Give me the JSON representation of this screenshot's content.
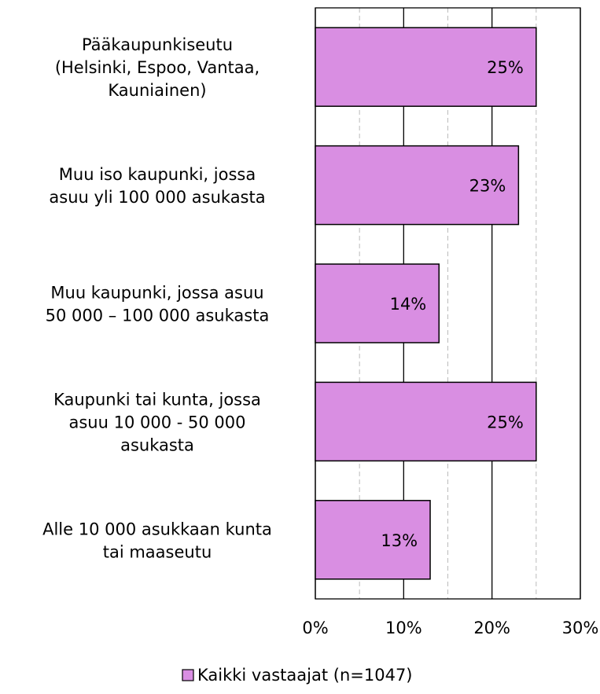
{
  "chart_data": {
    "type": "barh",
    "categories": [
      "Pääkaupunkiseutu\n(Helsinki, Espoo, Vantaa,\nKauniainen)",
      "Muu iso kaupunki, jossa\nasuu yli 100 000 asukasta",
      "Muu kaupunki, jossa asuu\n50 000 – 100 000 asukasta",
      "Kaupunki tai kunta, jossa\nasuu 10 000 - 50 000\nasukasta",
      "Alle 10 000 asukkaan kunta\ntai maaseutu"
    ],
    "series": [
      {
        "name": "Kaikki vastaajat (n=1047)",
        "color": "#d98ee2",
        "values": [
          25,
          23,
          14,
          25,
          13
        ],
        "value_labels": [
          "25%",
          "23%",
          "14%",
          "25%",
          "13%"
        ]
      }
    ],
    "xlim": [
      0,
      30
    ],
    "xticks": [
      {
        "value": 0,
        "label": "0%"
      },
      {
        "value": 10,
        "label": "10%"
      },
      {
        "value": 20,
        "label": "20%"
      },
      {
        "value": 30,
        "label": "30%"
      }
    ],
    "xticks_minor": [
      5,
      15,
      25
    ],
    "grid": true,
    "legend": "bottom"
  }
}
